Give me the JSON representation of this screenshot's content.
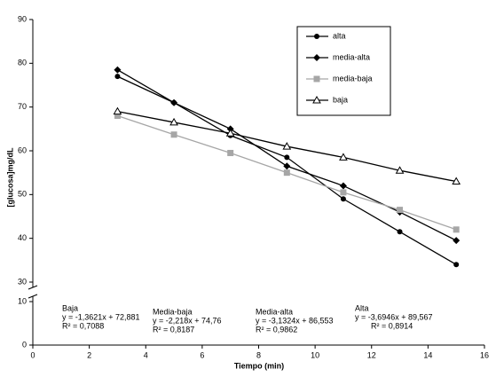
{
  "chart_data": {
    "type": "line",
    "x_label": "Tiempo (min)",
    "y_label": "[glucosa]mg/dL",
    "x": [
      3,
      5,
      7,
      9,
      11,
      13,
      15
    ],
    "series": [
      {
        "name": "alta",
        "color": "#000000",
        "marker": "circle",
        "values": [
          77,
          71,
          63.5,
          58.5,
          49,
          41.5,
          34
        ]
      },
      {
        "name": "media-alta",
        "color": "#000000",
        "marker": "diamond",
        "values": [
          78.5,
          71,
          65,
          56.5,
          52,
          46,
          39.5
        ]
      },
      {
        "name": "media-baja",
        "color": "#a6a6a6",
        "marker": "square",
        "values": [
          68,
          63.7,
          59.5,
          55,
          50.5,
          46.5,
          42
        ]
      },
      {
        "name": "baja",
        "color": "#000000",
        "marker": "triangle",
        "values": [
          69,
          66.5,
          64,
          61,
          58.5,
          55.5,
          53
        ]
      }
    ],
    "xlim": [
      0,
      16
    ],
    "xticks": [
      0,
      2,
      4,
      6,
      8,
      10,
      12,
      14,
      16
    ],
    "ylim": [
      0,
      90
    ],
    "ybreak": [
      10,
      30
    ],
    "yticks": [
      0,
      10,
      30,
      40,
      50,
      60,
      70,
      80,
      90
    ],
    "legend": "top-right",
    "annotations": [
      [
        "Baja",
        "y = -1,3621x + 72,881",
        "R² = 0,7088"
      ],
      [
        "Media-baja",
        "y = -2,218x + 74,76",
        "R² = 0,8187"
      ],
      [
        "Media-alta",
        "y = -3,1324x + 86,553",
        "R² = 0,9862"
      ],
      [
        "Alta",
        "y = -3,6946x + 89,567",
        "R² = 0,8914"
      ]
    ]
  }
}
